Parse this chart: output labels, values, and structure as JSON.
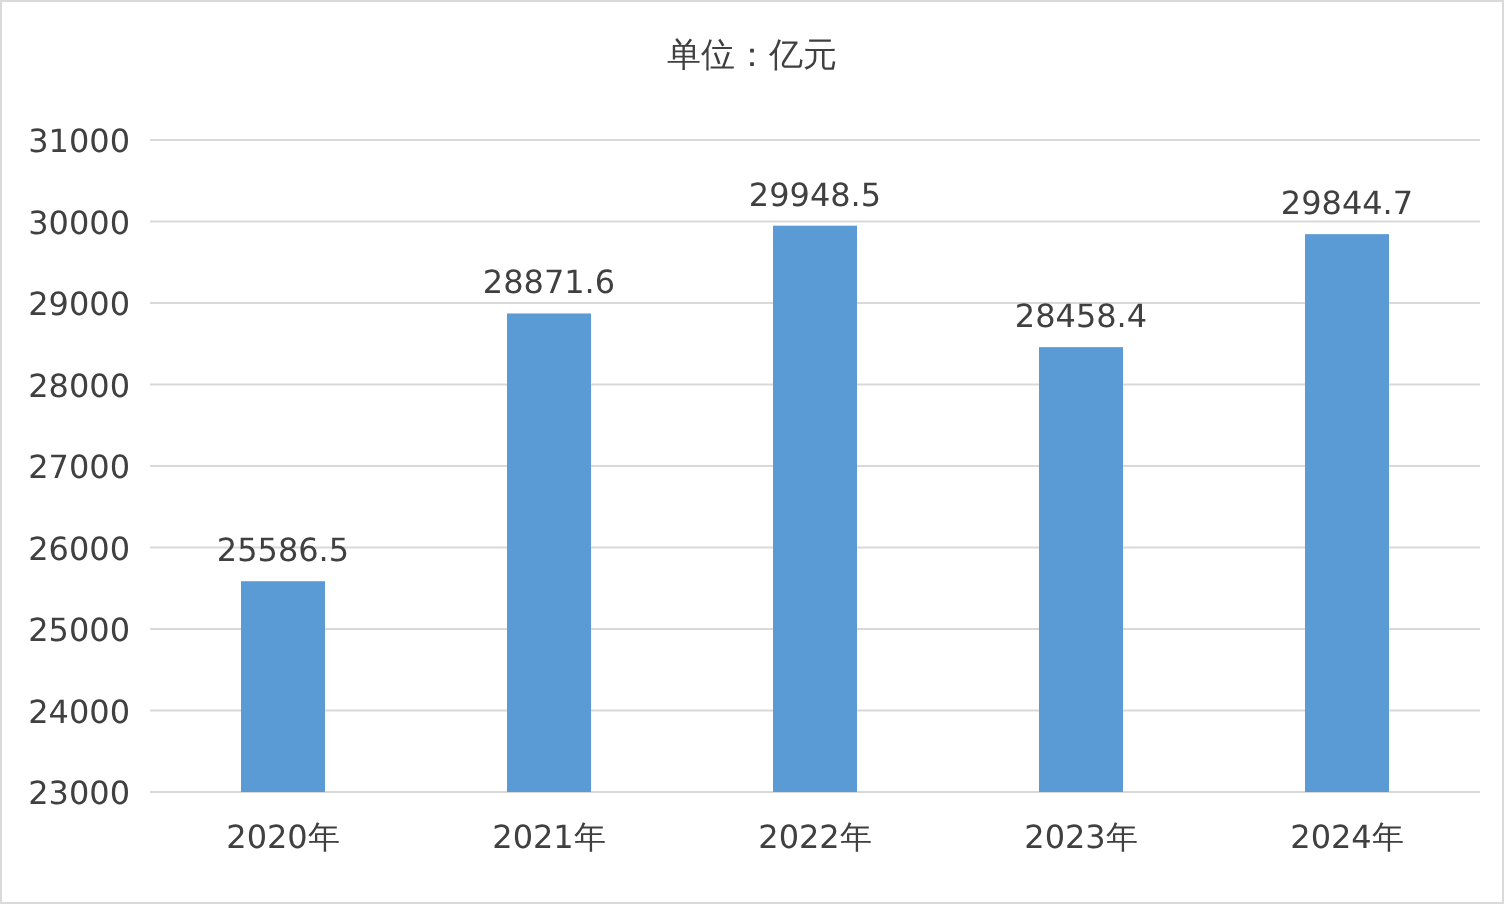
{
  "chart_data": {
    "type": "bar",
    "title": "单位：亿元",
    "categories": [
      "2020年",
      "2021年",
      "2022年",
      "2023年",
      "2024年"
    ],
    "values": [
      25586.5,
      28871.6,
      29948.5,
      28458.4,
      29844.7
    ],
    "color": "#5b9bd5",
    "ylim": [
      23000,
      31000
    ],
    "yticks": [
      23000,
      24000,
      25000,
      26000,
      27000,
      28000,
      29000,
      30000,
      31000
    ],
    "grid": "y",
    "data_labels": true
  }
}
